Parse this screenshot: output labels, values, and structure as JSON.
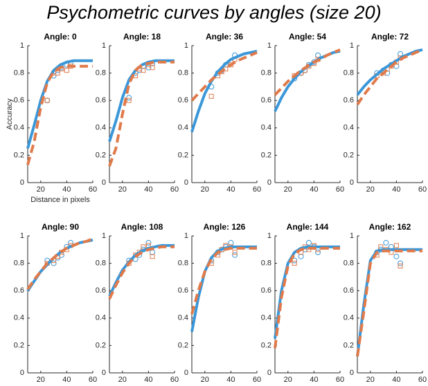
{
  "title": "Psychometric curves by angles (size 20)",
  "chart_data": [
    {
      "type": "line",
      "title": "Angle: 0",
      "xlabel": "Distance in pixels",
      "ylabel": "Accuracy",
      "xlim": [
        10,
        60
      ],
      "ylim": [
        0,
        1
      ],
      "xticks": [
        20,
        40,
        60
      ],
      "yticks": [
        0,
        0.2,
        0.4,
        0.6,
        0.8,
        1
      ],
      "x": [
        10,
        15,
        20,
        25,
        30,
        35,
        40,
        45,
        50,
        55,
        60
      ],
      "series": [
        {
          "color": "#3b97d8",
          "style": "solid",
          "values": [
            0.25,
            0.42,
            0.6,
            0.74,
            0.82,
            0.86,
            0.88,
            0.89,
            0.89,
            0.89,
            0.89
          ]
        },
        {
          "color": "#e07a4a",
          "style": "dashed",
          "values": [
            0.13,
            0.3,
            0.55,
            0.73,
            0.81,
            0.84,
            0.85,
            0.85,
            0.85,
            0.85,
            0.85
          ]
        }
      ],
      "points": [
        {
          "color": "#3b97d8",
          "marker": "circle",
          "x": [
            25,
            30,
            33,
            36,
            40,
            43
          ],
          "values": [
            0.6,
            0.78,
            0.82,
            0.84,
            0.86,
            0.87
          ]
        },
        {
          "color": "#e07a4a",
          "marker": "square",
          "x": [
            25,
            30,
            33,
            36,
            40,
            43
          ],
          "values": [
            0.6,
            0.8,
            0.8,
            0.83,
            0.82,
            0.85
          ]
        }
      ]
    },
    {
      "type": "line",
      "title": "Angle: 18",
      "xlim": [
        10,
        60
      ],
      "ylim": [
        0,
        1
      ],
      "xticks": [
        20,
        40,
        60
      ],
      "yticks": [
        0,
        0.2,
        0.4,
        0.6,
        0.8,
        1
      ],
      "x": [
        10,
        15,
        20,
        25,
        30,
        35,
        40,
        45,
        50,
        55,
        60
      ],
      "series": [
        {
          "color": "#3b97d8",
          "style": "solid",
          "values": [
            0.3,
            0.45,
            0.62,
            0.75,
            0.82,
            0.86,
            0.88,
            0.89,
            0.89,
            0.89,
            0.89
          ]
        },
        {
          "color": "#e07a4a",
          "style": "dashed",
          "values": [
            0.12,
            0.25,
            0.5,
            0.72,
            0.82,
            0.86,
            0.87,
            0.88,
            0.88,
            0.88,
            0.88
          ]
        }
      ],
      "points": [
        {
          "color": "#3b97d8",
          "marker": "circle",
          "x": [
            25,
            30,
            33,
            36,
            40,
            43
          ],
          "values": [
            0.62,
            0.8,
            0.82,
            0.85,
            0.84,
            0.87
          ]
        },
        {
          "color": "#e07a4a",
          "marker": "square",
          "x": [
            25,
            30,
            33,
            36,
            40,
            43
          ],
          "values": [
            0.6,
            0.78,
            0.83,
            0.82,
            0.86,
            0.84
          ]
        }
      ]
    },
    {
      "type": "line",
      "title": "Angle: 36",
      "xlim": [
        10,
        60
      ],
      "ylim": [
        0,
        1
      ],
      "xticks": [
        20,
        40,
        60
      ],
      "yticks": [
        0,
        0.2,
        0.4,
        0.6,
        0.8,
        1
      ],
      "x": [
        10,
        15,
        20,
        25,
        30,
        35,
        40,
        45,
        50,
        55,
        60
      ],
      "series": [
        {
          "color": "#3b97d8",
          "style": "solid",
          "values": [
            0.37,
            0.52,
            0.65,
            0.74,
            0.81,
            0.86,
            0.9,
            0.92,
            0.94,
            0.95,
            0.96
          ]
        },
        {
          "color": "#e07a4a",
          "style": "dashed",
          "values": [
            0.6,
            0.65,
            0.7,
            0.75,
            0.79,
            0.83,
            0.86,
            0.89,
            0.91,
            0.93,
            0.95
          ]
        }
      ],
      "points": [
        {
          "color": "#3b97d8",
          "marker": "circle",
          "x": [
            25,
            30,
            33,
            36,
            40,
            43
          ],
          "values": [
            0.7,
            0.8,
            0.82,
            0.86,
            0.88,
            0.93
          ]
        },
        {
          "color": "#e07a4a",
          "marker": "square",
          "x": [
            25,
            30,
            33,
            36,
            40,
            43
          ],
          "values": [
            0.63,
            0.78,
            0.81,
            0.83,
            0.86,
            0.9
          ]
        }
      ]
    },
    {
      "type": "line",
      "title": "Angle: 54",
      "xlim": [
        10,
        60
      ],
      "ylim": [
        0,
        1
      ],
      "xticks": [
        20,
        40,
        60
      ],
      "yticks": [
        0,
        0.2,
        0.4,
        0.6,
        0.8,
        1
      ],
      "x": [
        10,
        15,
        20,
        25,
        30,
        35,
        40,
        45,
        50,
        55,
        60
      ],
      "series": [
        {
          "color": "#3b97d8",
          "style": "solid",
          "values": [
            0.52,
            0.62,
            0.7,
            0.76,
            0.81,
            0.85,
            0.88,
            0.91,
            0.93,
            0.95,
            0.96
          ]
        },
        {
          "color": "#e07a4a",
          "style": "dashed",
          "values": [
            0.64,
            0.69,
            0.74,
            0.78,
            0.82,
            0.85,
            0.88,
            0.9,
            0.93,
            0.95,
            0.97
          ]
        }
      ],
      "points": [
        {
          "color": "#3b97d8",
          "marker": "circle",
          "x": [
            25,
            30,
            33,
            36,
            40,
            43
          ],
          "values": [
            0.76,
            0.8,
            0.82,
            0.86,
            0.88,
            0.93
          ]
        },
        {
          "color": "#e07a4a",
          "marker": "square",
          "x": [
            25,
            30,
            33,
            36,
            40,
            43
          ],
          "values": [
            0.78,
            0.8,
            0.82,
            0.85,
            0.87,
            0.9
          ]
        }
      ]
    },
    {
      "type": "line",
      "title": "Angle: 72",
      "xlim": [
        10,
        60
      ],
      "ylim": [
        0,
        1
      ],
      "xticks": [
        20,
        40,
        60
      ],
      "yticks": [
        0,
        0.2,
        0.4,
        0.6,
        0.8,
        1
      ],
      "x": [
        10,
        15,
        20,
        25,
        30,
        35,
        40,
        45,
        50,
        55,
        60
      ],
      "series": [
        {
          "color": "#3b97d8",
          "style": "solid",
          "values": [
            0.64,
            0.7,
            0.75,
            0.79,
            0.83,
            0.86,
            0.89,
            0.92,
            0.94,
            0.96,
            0.97
          ]
        },
        {
          "color": "#e07a4a",
          "style": "dashed",
          "values": [
            0.57,
            0.64,
            0.7,
            0.76,
            0.8,
            0.84,
            0.88,
            0.91,
            0.93,
            0.95,
            0.97
          ]
        }
      ],
      "points": [
        {
          "color": "#3b97d8",
          "marker": "circle",
          "x": [
            25,
            30,
            33,
            36,
            40,
            43
          ],
          "values": [
            0.8,
            0.82,
            0.8,
            0.86,
            0.85,
            0.94
          ]
        },
        {
          "color": "#e07a4a",
          "marker": "square",
          "x": [
            25,
            30,
            33,
            36,
            40,
            43
          ],
          "values": [
            0.78,
            0.8,
            0.83,
            0.85,
            0.88,
            0.91
          ]
        }
      ]
    },
    {
      "type": "line",
      "title": "Angle: 90",
      "xlim": [
        10,
        60
      ],
      "ylim": [
        0,
        1
      ],
      "xticks": [
        20,
        40,
        60
      ],
      "yticks": [
        0,
        0.2,
        0.4,
        0.6,
        0.8,
        1
      ],
      "x": [
        10,
        15,
        20,
        25,
        30,
        35,
        40,
        45,
        50,
        55,
        60
      ],
      "series": [
        {
          "color": "#3b97d8",
          "style": "solid",
          "values": [
            0.6,
            0.67,
            0.74,
            0.79,
            0.84,
            0.88,
            0.91,
            0.93,
            0.95,
            0.96,
            0.97
          ]
        },
        {
          "color": "#e07a4a",
          "style": "dashed",
          "values": [
            0.61,
            0.68,
            0.74,
            0.8,
            0.84,
            0.88,
            0.91,
            0.93,
            0.95,
            0.96,
            0.98
          ]
        }
      ],
      "points": [
        {
          "color": "#3b97d8",
          "marker": "circle",
          "x": [
            25,
            30,
            33,
            36,
            40,
            43
          ],
          "values": [
            0.82,
            0.8,
            0.84,
            0.86,
            0.92,
            0.95
          ]
        },
        {
          "color": "#e07a4a",
          "marker": "square",
          "x": [
            25,
            30,
            33,
            36,
            40,
            43
          ],
          "values": [
            0.8,
            0.82,
            0.85,
            0.88,
            0.9,
            0.93
          ]
        }
      ]
    },
    {
      "type": "line",
      "title": "Angle: 108",
      "xlim": [
        10,
        60
      ],
      "ylim": [
        0,
        1
      ],
      "xticks": [
        20,
        40,
        60
      ],
      "yticks": [
        0,
        0.2,
        0.4,
        0.6,
        0.8,
        1
      ],
      "x": [
        10,
        15,
        20,
        25,
        30,
        35,
        40,
        45,
        50,
        55,
        60
      ],
      "series": [
        {
          "color": "#3b97d8",
          "style": "solid",
          "values": [
            0.56,
            0.66,
            0.75,
            0.81,
            0.86,
            0.89,
            0.91,
            0.92,
            0.93,
            0.93,
            0.93
          ]
        },
        {
          "color": "#e07a4a",
          "style": "dashed",
          "values": [
            0.54,
            0.64,
            0.73,
            0.8,
            0.85,
            0.88,
            0.9,
            0.91,
            0.92,
            0.92,
            0.92
          ]
        }
      ],
      "points": [
        {
          "color": "#3b97d8",
          "marker": "circle",
          "x": [
            25,
            30,
            33,
            36,
            40,
            43
          ],
          "values": [
            0.82,
            0.83,
            0.86,
            0.9,
            0.95,
            0.88
          ]
        },
        {
          "color": "#e07a4a",
          "marker": "square",
          "x": [
            25,
            30,
            33,
            36,
            40,
            43
          ],
          "values": [
            0.8,
            0.86,
            0.88,
            0.92,
            0.93,
            0.85
          ]
        }
      ]
    },
    {
      "type": "line",
      "title": "Angle: 126",
      "xlim": [
        10,
        60
      ],
      "ylim": [
        0,
        1
      ],
      "xticks": [
        20,
        40,
        60
      ],
      "yticks": [
        0,
        0.2,
        0.4,
        0.6,
        0.8,
        1
      ],
      "x": [
        10,
        15,
        20,
        25,
        30,
        35,
        40,
        45,
        50,
        55,
        60
      ],
      "series": [
        {
          "color": "#3b97d8",
          "style": "solid",
          "values": [
            0.3,
            0.55,
            0.74,
            0.84,
            0.89,
            0.91,
            0.92,
            0.92,
            0.92,
            0.92,
            0.92
          ]
        },
        {
          "color": "#e07a4a",
          "style": "dashed",
          "values": [
            0.43,
            0.6,
            0.74,
            0.83,
            0.88,
            0.9,
            0.91,
            0.91,
            0.91,
            0.91,
            0.91
          ]
        }
      ],
      "points": [
        {
          "color": "#3b97d8",
          "marker": "circle",
          "x": [
            25,
            30,
            33,
            36,
            40,
            43
          ],
          "values": [
            0.82,
            0.88,
            0.9,
            0.92,
            0.95,
            0.86
          ]
        },
        {
          "color": "#e07a4a",
          "marker": "square",
          "x": [
            25,
            30,
            33,
            36,
            40,
            43
          ],
          "values": [
            0.8,
            0.86,
            0.9,
            0.93,
            0.92,
            0.88
          ]
        }
      ]
    },
    {
      "type": "line",
      "title": "Angle: 144",
      "xlim": [
        10,
        60
      ],
      "ylim": [
        0,
        1
      ],
      "xticks": [
        20,
        40,
        60
      ],
      "yticks": [
        0,
        0.2,
        0.4,
        0.6,
        0.8,
        1
      ],
      "x": [
        10,
        15,
        20,
        25,
        30,
        35,
        40,
        45,
        50,
        55,
        60
      ],
      "series": [
        {
          "color": "#3b97d8",
          "style": "solid",
          "values": [
            0.25,
            0.6,
            0.8,
            0.88,
            0.91,
            0.92,
            0.92,
            0.92,
            0.92,
            0.92,
            0.92
          ]
        },
        {
          "color": "#e07a4a",
          "style": "dashed",
          "values": [
            0.18,
            0.55,
            0.78,
            0.87,
            0.9,
            0.91,
            0.91,
            0.91,
            0.91,
            0.91,
            0.91
          ]
        }
      ],
      "points": [
        {
          "color": "#3b97d8",
          "marker": "circle",
          "x": [
            25,
            30,
            33,
            36,
            40,
            43
          ],
          "values": [
            0.82,
            0.85,
            0.9,
            0.95,
            0.92,
            0.88
          ]
        },
        {
          "color": "#e07a4a",
          "marker": "square",
          "x": [
            25,
            30,
            33,
            36,
            40,
            43
          ],
          "values": [
            0.8,
            0.88,
            0.92,
            0.9,
            0.93,
            0.9
          ]
        }
      ]
    },
    {
      "type": "line",
      "title": "Angle: 162",
      "xlim": [
        10,
        60
      ],
      "ylim": [
        0,
        1
      ],
      "xticks": [
        20,
        40,
        60
      ],
      "yticks": [
        0,
        0.2,
        0.4,
        0.6,
        0.8,
        1
      ],
      "x": [
        10,
        15,
        20,
        25,
        30,
        35,
        40,
        45,
        50,
        55,
        60
      ],
      "series": [
        {
          "color": "#3b97d8",
          "style": "solid",
          "values": [
            0.12,
            0.5,
            0.82,
            0.89,
            0.9,
            0.9,
            0.9,
            0.9,
            0.9,
            0.9,
            0.9
          ]
        },
        {
          "color": "#e07a4a",
          "style": "dashed",
          "values": [
            0.12,
            0.45,
            0.8,
            0.88,
            0.89,
            0.89,
            0.89,
            0.89,
            0.89,
            0.89,
            0.89
          ]
        }
      ],
      "points": [
        {
          "color": "#3b97d8",
          "marker": "circle",
          "x": [
            25,
            28,
            32,
            36,
            40,
            43
          ],
          "values": [
            0.88,
            0.9,
            0.95,
            0.92,
            0.85,
            0.8
          ]
        },
        {
          "color": "#e07a4a",
          "marker": "square",
          "x": [
            25,
            28,
            32,
            36,
            40,
            43
          ],
          "values": [
            0.86,
            0.92,
            0.9,
            0.88,
            0.93,
            0.78
          ]
        }
      ]
    }
  ]
}
